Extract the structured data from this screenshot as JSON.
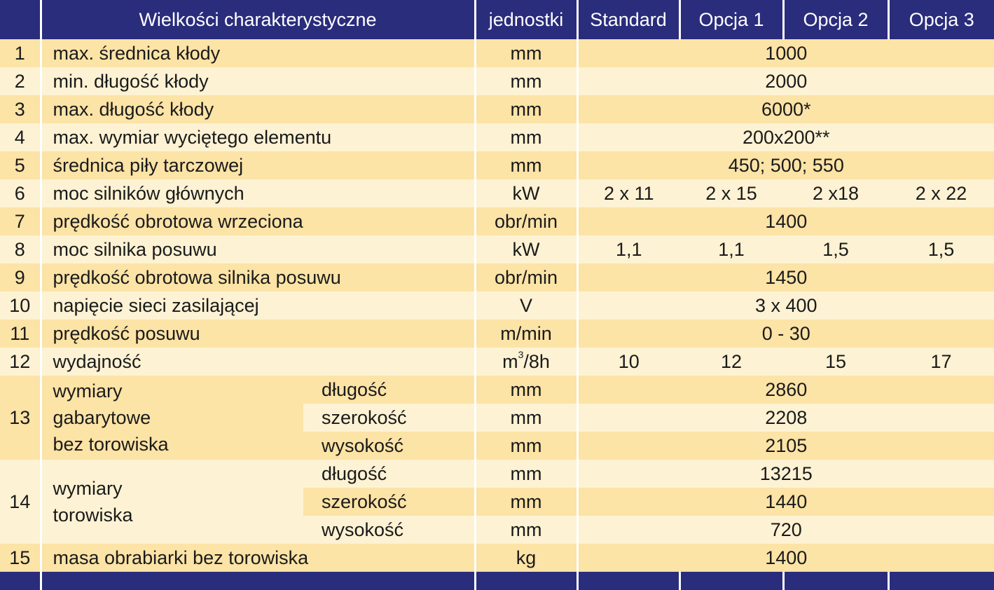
{
  "header": {
    "col_param": "Wielkości charakterystyczne",
    "col_unit": "jednostki",
    "col_standard": "Standard",
    "col_opt1": "Opcja 1",
    "col_opt2": "Opcja 2",
    "col_opt3": "Opcja 3"
  },
  "rows": [
    {
      "num": "1",
      "label": "max. średnica kłody",
      "unit": "mm",
      "value": "1000"
    },
    {
      "num": "2",
      "label": "min. długość kłody",
      "unit": "mm",
      "value": "2000"
    },
    {
      "num": "3",
      "label": "max. długość kłody",
      "unit": "mm",
      "value": "6000*"
    },
    {
      "num": "4",
      "label": "max. wymiar wyciętego elementu",
      "unit": "mm",
      "value": "200x200**"
    },
    {
      "num": "5",
      "label": "średnica piły tarczowej",
      "unit": "mm",
      "value": "450; 500; 550"
    },
    {
      "num": "6",
      "label": "moc silników głównych",
      "unit": "kW",
      "values": [
        "2 x 11",
        "2 x 15",
        "2 x18",
        "2 x 22"
      ]
    },
    {
      "num": "7",
      "label": "prędkość obrotowa wrzeciona",
      "unit": "obr/min",
      "value": "1400"
    },
    {
      "num": "8",
      "label": "moc silnika posuwu",
      "unit": "kW",
      "values": [
        "1,1",
        "1,1",
        "1,5",
        "1,5"
      ]
    },
    {
      "num": "9",
      "label": "prędkość obrotowa silnika posuwu",
      "unit": "obr/min",
      "value": "1450"
    },
    {
      "num": "10",
      "label": "napięcie sieci zasilającej",
      "unit": "V",
      "value": "3 x 400"
    },
    {
      "num": "11",
      "label": "prędkość posuwu",
      "unit": "m/min",
      "value": "0 - 30"
    },
    {
      "num": "12",
      "label": "wydajność",
      "unit_base": "m",
      "unit_sup": "3",
      "unit_rest": "/8h",
      "values": [
        "10",
        "12",
        "15",
        "17"
      ]
    }
  ],
  "group13": {
    "num": "13",
    "label_lines": [
      "wymiary",
      "gabarytowe",
      "bez torowiska"
    ],
    "subrows": [
      {
        "sub": "długość",
        "unit": "mm",
        "value": "2860"
      },
      {
        "sub": "szerokość",
        "unit": "mm",
        "value": "2208"
      },
      {
        "sub": "wysokość",
        "unit": "mm",
        "value": "2105"
      }
    ]
  },
  "group14": {
    "num": "14",
    "label_lines": [
      "wymiary",
      "torowiska"
    ],
    "subrows": [
      {
        "sub": "długość",
        "unit": "mm",
        "value": "13215"
      },
      {
        "sub": "szerokość",
        "unit": "mm",
        "value": "1440"
      },
      {
        "sub": "wysokość",
        "unit": "mm",
        "value": "720"
      }
    ]
  },
  "row15": {
    "num": "15",
    "label": "masa obrabiarki bez torowiska",
    "unit": "kg",
    "value": "1400"
  },
  "colors": {
    "header_bg": "#2a2c7c",
    "row_dark": "#fce3a6",
    "row_light": "#fdf2d3",
    "header_text": "#ffffff"
  }
}
